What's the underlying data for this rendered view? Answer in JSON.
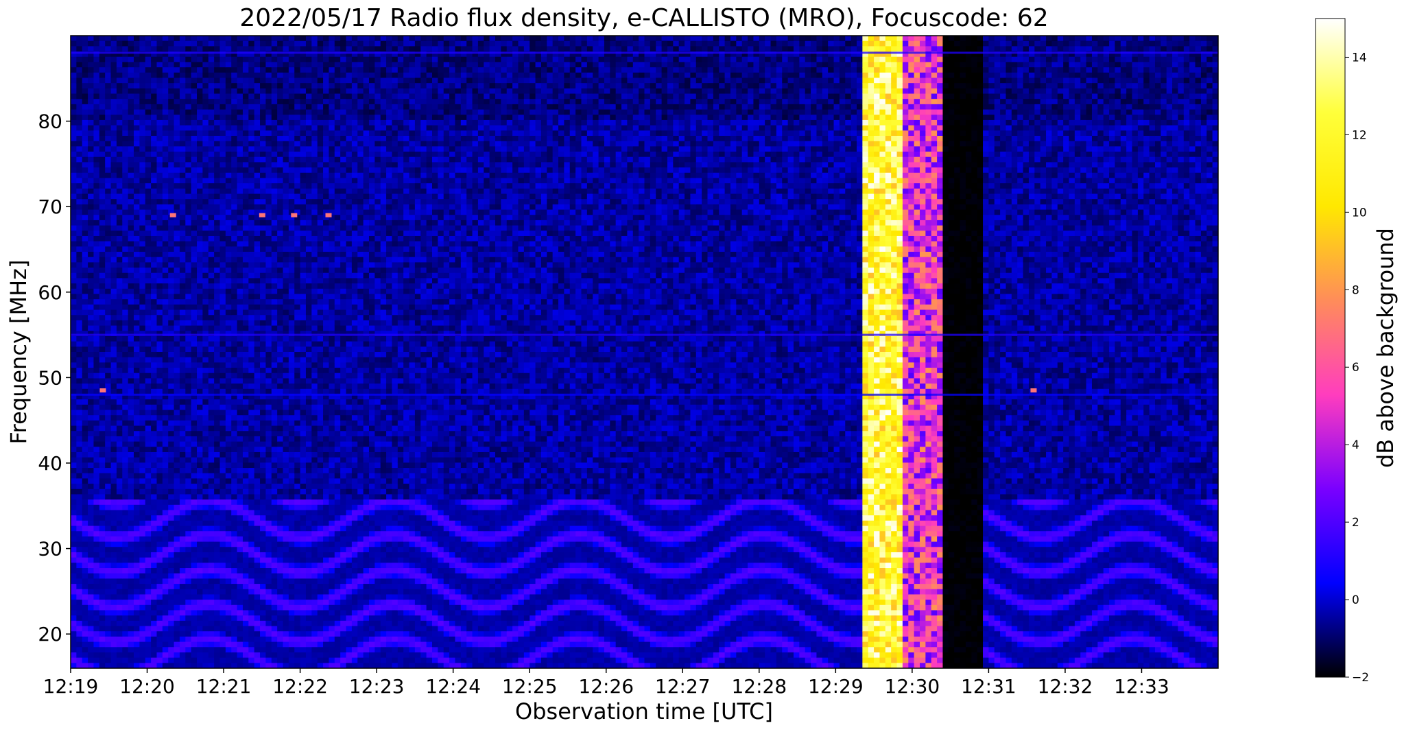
{
  "chart_data": {
    "type": "heatmap",
    "title": "2022/05/17  Radio flux density, e-CALLISTO (MRO), Focuscode: 62",
    "xlabel": "Observation time [UTC]",
    "ylabel": "Frequency [MHz]",
    "colorbar_label": "dB above background",
    "colormap": "gnuplot2",
    "colormap_stops": [
      "#000000",
      "#0000ff",
      "#7a00ff",
      "#ff3dbe",
      "#ff8c5a",
      "#ffe800",
      "#ffff3a",
      "#ffffff"
    ],
    "colorbar_range": [
      -2,
      15
    ],
    "colorbar_ticks": [
      -2,
      0,
      2,
      4,
      6,
      8,
      10,
      12,
      14
    ],
    "xlim_minutes": [
      0,
      15
    ],
    "x_ticks": [
      "12:19",
      "12:20",
      "12:21",
      "12:22",
      "12:23",
      "12:24",
      "12:25",
      "12:26",
      "12:27",
      "12:28",
      "12:29",
      "12:30",
      "12:31",
      "12:32",
      "12:33"
    ],
    "ylim": [
      16,
      90
    ],
    "y_ticks": [
      20,
      30,
      40,
      50,
      60,
      70,
      80
    ],
    "grid": false,
    "features": [
      {
        "kind": "burst",
        "time_start": "12:29:21",
        "time_end": "12:29:52",
        "freq_range": [
          16,
          90
        ],
        "level_db": 12
      },
      {
        "kind": "burst",
        "time_start": "12:29:52",
        "time_end": "12:30:23",
        "freq_range": [
          16,
          90
        ],
        "level_db": 5
      },
      {
        "kind": "dropout",
        "time_start": "12:30:23",
        "time_end": "12:30:54",
        "freq_range": [
          16,
          90
        ],
        "level_db": -2
      },
      {
        "kind": "interference_band",
        "freq_range": [
          16,
          36
        ],
        "level_db": 1.5
      },
      {
        "kind": "carrier",
        "freq": 88,
        "level_db": 1
      },
      {
        "kind": "carrier",
        "freq": 55,
        "level_db": 1
      },
      {
        "kind": "carrier",
        "freq": 48,
        "level_db": 0.5
      },
      {
        "kind": "spike",
        "time": "12:19:25",
        "freq": 48.5,
        "level_db": 7
      },
      {
        "kind": "spike",
        "time": "12:31:35",
        "freq": 48.5,
        "level_db": 7
      },
      {
        "kind": "spike",
        "time": "12:20:20",
        "freq": 69,
        "level_db": 7
      },
      {
        "kind": "spike",
        "time": "12:21:30",
        "freq": 69,
        "level_db": 7
      },
      {
        "kind": "spike",
        "time": "12:21:55",
        "freq": 69,
        "level_db": 7
      },
      {
        "kind": "spike",
        "time": "12:22:22",
        "freq": 69,
        "level_db": 7
      }
    ]
  }
}
